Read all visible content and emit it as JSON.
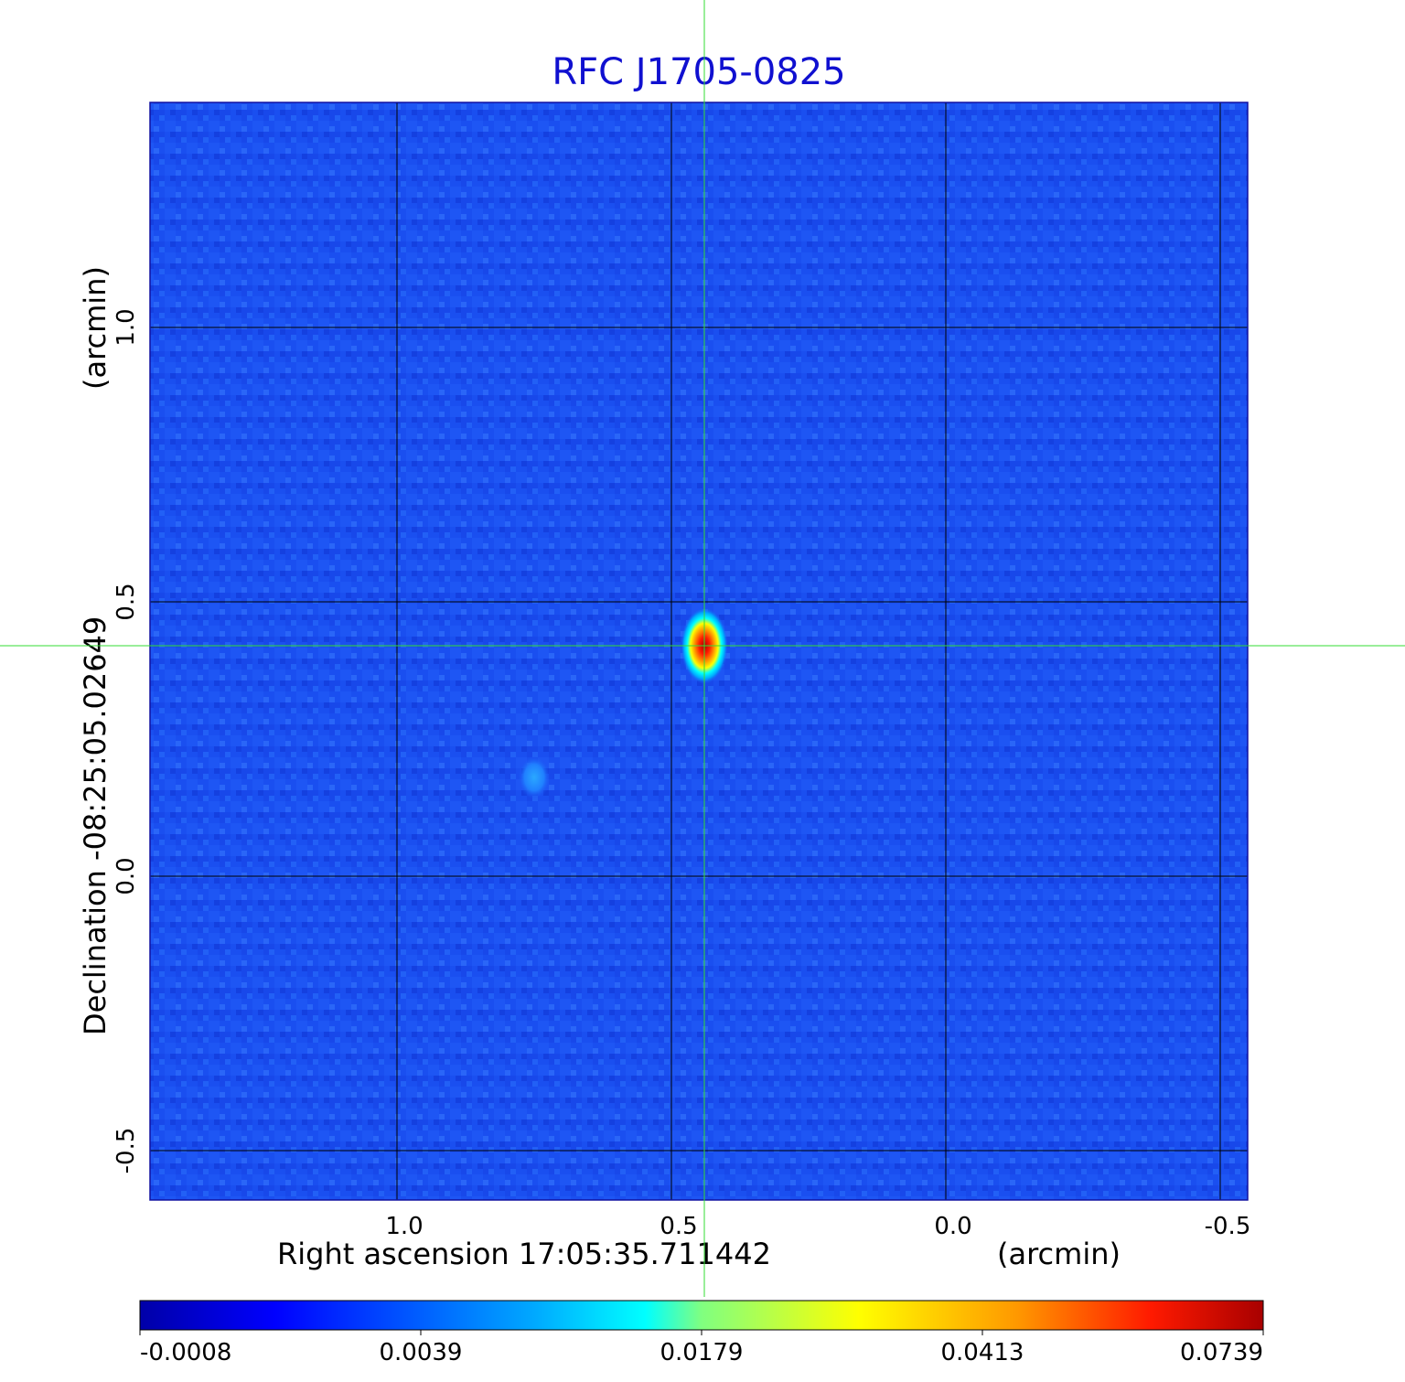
{
  "chart_data": {
    "type": "heatmap",
    "title": "RFC J1705-0825",
    "xlabel": "Right ascension  17:05:35.711442",
    "xunit": "(arcmin)",
    "ylabel": "Declination  -08:25:05.02649",
    "yunit": "(arcmin)",
    "xlim": [
      1.45,
      -0.55
    ],
    "ylim": [
      -0.59,
      1.41
    ],
    "x_ticks": [
      1.0,
      0.5,
      0.0,
      -0.5
    ],
    "x_tick_labels": [
      "1.0",
      "0.5",
      "0.0",
      "-0.5"
    ],
    "y_ticks": [
      -0.5,
      0.0,
      0.5,
      1.0
    ],
    "y_tick_labels": [
      "-0.5",
      "0.0",
      "0.5",
      "1.0"
    ],
    "grid": true,
    "crosshair": {
      "x": 0.44,
      "y": 0.42
    },
    "colormap": "jet",
    "sources": [
      {
        "name": "peak",
        "x": 0.44,
        "y": 0.42,
        "value": 0.0739
      },
      {
        "name": "secondary",
        "x": 0.75,
        "y": 0.18,
        "value": 0.0039
      }
    ],
    "colorbar": {
      "ticks": [
        "-0.0008",
        "0.0039",
        "0.0179",
        "0.0413",
        "0.0739"
      ]
    },
    "colors": {
      "title": "#1010d0",
      "background_field": "#1a4ff0",
      "grid": "#000000",
      "crosshair": "#33dd33"
    }
  }
}
